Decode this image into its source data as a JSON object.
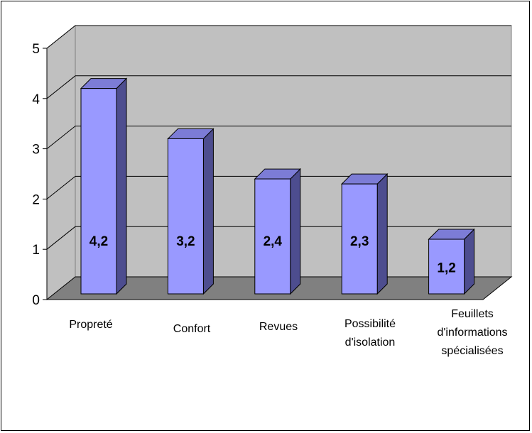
{
  "chart_data": {
    "type": "bar",
    "categories": [
      [
        "Propreté"
      ],
      [
        "Confort"
      ],
      [
        "Revues"
      ],
      [
        "Possibilité",
        "d'isolation"
      ],
      [
        "Feuillets",
        "d'informations",
        "spécialisées"
      ]
    ],
    "values": [
      4.2,
      3.2,
      2.4,
      2.3,
      1.2
    ],
    "data_labels": [
      "4,2",
      "3,2",
      "2,4",
      "2,3",
      "1,2"
    ],
    "y_ticks": [
      "0",
      "1",
      "2",
      "3",
      "4",
      "5"
    ],
    "ylim": [
      0,
      5
    ],
    "grid": true,
    "legend": "none",
    "three_d": true,
    "colors": {
      "bar_front": "#9999ff",
      "bar_side": "#4d4d8f",
      "bar_top": "#7c7cd6",
      "back_wall": "#c0c0c0",
      "side_wall": "#c0c0c0",
      "floor": "#808080",
      "grid": "#000000"
    }
  }
}
